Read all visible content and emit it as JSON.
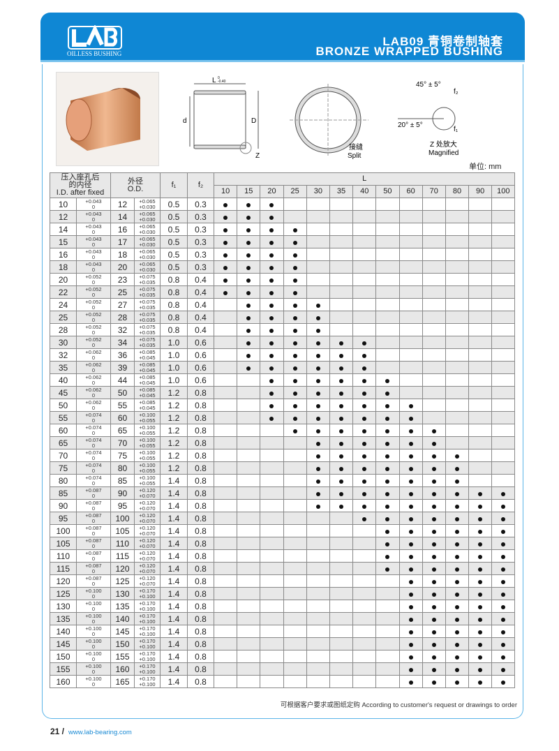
{
  "header": {
    "logo_text": "OILLESS BUSHING",
    "title_cn": "LAB09 青铜卷制轴套",
    "title_en": "BRONZE WRAPPED BUSHING",
    "brand_color": "#0f87d4"
  },
  "drawing": {
    "length_label": "L",
    "length_tol_up": "0",
    "length_tol_lo": "-0.40",
    "d_label": "d",
    "D_label": "D",
    "z_label": "Z",
    "split_cn": "接缝",
    "split_en": "Split",
    "angle1": "45° ± 5°",
    "angle2": "20° ± 5°",
    "f1": "f₁",
    "f2": "f₂",
    "magnified_cn": "Z 处放大",
    "magnified_en": "Magnified"
  },
  "unit": "单位: mm",
  "table": {
    "headers": {
      "id_cn": "压入座孔后的内径",
      "id_en": "I.D. after fixed",
      "od_cn": "外径",
      "od_en": "O.D.",
      "f1": "f₁",
      "f2": "f₂",
      "L": "L"
    },
    "L_values": [
      "10",
      "15",
      "20",
      "25",
      "30",
      "35",
      "40",
      "50",
      "60",
      "70",
      "80",
      "90",
      "100"
    ],
    "rows": [
      [
        "10",
        "+0.043",
        "0",
        "12",
        "+0.065",
        "+0.030",
        "0.5",
        "0.3",
        [
          10,
          15,
          20
        ]
      ],
      [
        "12",
        "+0.043",
        "0",
        "14",
        "+0.065",
        "+0.030",
        "0.5",
        "0.3",
        [
          10,
          15,
          20
        ]
      ],
      [
        "14",
        "+0.043",
        "0",
        "16",
        "+0.065",
        "+0.030",
        "0.5",
        "0.3",
        [
          10,
          15,
          20,
          25
        ]
      ],
      [
        "15",
        "+0.043",
        "0",
        "17",
        "+0.065",
        "+0.030",
        "0.5",
        "0.3",
        [
          10,
          15,
          20,
          25
        ]
      ],
      [
        "16",
        "+0.043",
        "0",
        "18",
        "+0.065",
        "+0.030",
        "0.5",
        "0.3",
        [
          10,
          15,
          20,
          25
        ]
      ],
      [
        "18",
        "+0.043",
        "0",
        "20",
        "+0.065",
        "+0.030",
        "0.5",
        "0.3",
        [
          10,
          15,
          20,
          25
        ]
      ],
      [
        "20",
        "+0.052",
        "0",
        "23",
        "+0.075",
        "+0.035",
        "0.8",
        "0.4",
        [
          10,
          15,
          20,
          25
        ]
      ],
      [
        "22",
        "+0.052",
        "0",
        "25",
        "+0.075",
        "+0.035",
        "0.8",
        "0.4",
        [
          10,
          15,
          20,
          25
        ]
      ],
      [
        "24",
        "+0.052",
        "0",
        "27",
        "+0.075",
        "+0.035",
        "0.8",
        "0.4",
        [
          15,
          20,
          25,
          30
        ]
      ],
      [
        "25",
        "+0.052",
        "0",
        "28",
        "+0.075",
        "+0.035",
        "0.8",
        "0.4",
        [
          15,
          20,
          25,
          30
        ]
      ],
      [
        "28",
        "+0.052",
        "0",
        "32",
        "+0.075",
        "+0.035",
        "0.8",
        "0.4",
        [
          15,
          20,
          25,
          30
        ]
      ],
      [
        "30",
        "+0.052",
        "0",
        "34",
        "+0.075",
        "+0.035",
        "1.0",
        "0.6",
        [
          15,
          20,
          25,
          30,
          35,
          40
        ]
      ],
      [
        "32",
        "+0.062",
        "0",
        "36",
        "+0.085",
        "+0.045",
        "1.0",
        "0.6",
        [
          15,
          20,
          25,
          30,
          35,
          40
        ]
      ],
      [
        "35",
        "+0.062",
        "0",
        "39",
        "+0.085",
        "+0.045",
        "1.0",
        "0.6",
        [
          15,
          20,
          25,
          30,
          35,
          40
        ]
      ],
      [
        "40",
        "+0.062",
        "0",
        "44",
        "+0.085",
        "+0.045",
        "1.0",
        "0.6",
        [
          20,
          25,
          30,
          35,
          40,
          50
        ]
      ],
      [
        "45",
        "+0.062",
        "0",
        "50",
        "+0.085",
        "+0.045",
        "1.2",
        "0.8",
        [
          20,
          25,
          30,
          35,
          40,
          50
        ]
      ],
      [
        "50",
        "+0.062",
        "0",
        "55",
        "+0.085",
        "+0.045",
        "1.2",
        "0.8",
        [
          20,
          25,
          30,
          35,
          40,
          50,
          60
        ]
      ],
      [
        "55",
        "+0.074",
        "0",
        "60",
        "+0.100",
        "+0.055",
        "1.2",
        "0.8",
        [
          20,
          25,
          30,
          35,
          40,
          50,
          60
        ]
      ],
      [
        "60",
        "+0.074",
        "0",
        "65",
        "+0.100",
        "+0.055",
        "1.2",
        "0.8",
        [
          25,
          30,
          35,
          40,
          50,
          60,
          70
        ]
      ],
      [
        "65",
        "+0.074",
        "0",
        "70",
        "+0.100",
        "+0.055",
        "1.2",
        "0.8",
        [
          30,
          35,
          40,
          50,
          60,
          70
        ]
      ],
      [
        "70",
        "+0.074",
        "0",
        "75",
        "+0.100",
        "+0.055",
        "1.2",
        "0.8",
        [
          30,
          35,
          40,
          50,
          60,
          70,
          80
        ]
      ],
      [
        "75",
        "+0.074",
        "0",
        "80",
        "+0.100",
        "+0.055",
        "1.2",
        "0.8",
        [
          30,
          35,
          40,
          50,
          60,
          70,
          80
        ]
      ],
      [
        "80",
        "+0.074",
        "0",
        "85",
        "+0.100",
        "+0.055",
        "1.4",
        "0.8",
        [
          30,
          35,
          40,
          50,
          60,
          70,
          80
        ]
      ],
      [
        "85",
        "+0.087",
        "0",
        "90",
        "+0.120",
        "+0.070",
        "1.4",
        "0.8",
        [
          30,
          35,
          40,
          50,
          60,
          70,
          80,
          90,
          100
        ]
      ],
      [
        "90",
        "+0.087",
        "0",
        "95",
        "+0.120",
        "+0.070",
        "1.4",
        "0.8",
        [
          30,
          35,
          40,
          50,
          60,
          70,
          80,
          90,
          100
        ]
      ],
      [
        "95",
        "+0.087",
        "0",
        "100",
        "+0.120",
        "+0.070",
        "1.4",
        "0.8",
        [
          40,
          50,
          60,
          70,
          80,
          90,
          100
        ]
      ],
      [
        "100",
        "+0.087",
        "0",
        "105",
        "+0.120",
        "+0.070",
        "1.4",
        "0.8",
        [
          50,
          60,
          70,
          80,
          90,
          100
        ]
      ],
      [
        "105",
        "+0.087",
        "0",
        "110",
        "+0.120",
        "+0.070",
        "1.4",
        "0.8",
        [
          50,
          60,
          70,
          80,
          90,
          100
        ]
      ],
      [
        "110",
        "+0.087",
        "0",
        "115",
        "+0.120",
        "+0.070",
        "1.4",
        "0.8",
        [
          50,
          60,
          70,
          80,
          90,
          100
        ]
      ],
      [
        "115",
        "+0.087",
        "0",
        "120",
        "+0.120",
        "+0.070",
        "1.4",
        "0.8",
        [
          50,
          60,
          70,
          80,
          90,
          100
        ]
      ],
      [
        "120",
        "+0.087",
        "0",
        "125",
        "+0.120",
        "+0.070",
        "1.4",
        "0.8",
        [
          60,
          70,
          80,
          90,
          100
        ]
      ],
      [
        "125",
        "+0.100",
        "0",
        "130",
        "+0.170",
        "+0.100",
        "1.4",
        "0.8",
        [
          60,
          70,
          80,
          90,
          100
        ]
      ],
      [
        "130",
        "+0.100",
        "0",
        "135",
        "+0.170",
        "+0.100",
        "1.4",
        "0.8",
        [
          60,
          70,
          80,
          90,
          100
        ]
      ],
      [
        "135",
        "+0.100",
        "0",
        "140",
        "+0.170",
        "+0.100",
        "1.4",
        "0.8",
        [
          60,
          70,
          80,
          90,
          100
        ]
      ],
      [
        "140",
        "+0.100",
        "0",
        "145",
        "+0.170",
        "+0.100",
        "1.4",
        "0.8",
        [
          60,
          70,
          80,
          90,
          100
        ]
      ],
      [
        "145",
        "+0.100",
        "0",
        "150",
        "+0.170",
        "+0.100",
        "1.4",
        "0.8",
        [
          60,
          70,
          80,
          90,
          100
        ]
      ],
      [
        "150",
        "+0.100",
        "0",
        "155",
        "+0.170",
        "+0.100",
        "1.4",
        "0.8",
        [
          60,
          70,
          80,
          90,
          100
        ]
      ],
      [
        "155",
        "+0.100",
        "0",
        "160",
        "+0.170",
        "+0.100",
        "1.4",
        "0.8",
        [
          60,
          70,
          80,
          90,
          100
        ]
      ],
      [
        "160",
        "+0.100",
        "0",
        "165",
        "+0.170",
        "+0.100",
        "1.4",
        "0.8",
        [
          60,
          70,
          80,
          90,
          100
        ]
      ]
    ]
  },
  "footer": {
    "note": "可根据客户要求或图纸定购  According to customer's request or drawings to order",
    "page": "21 /",
    "url": "www.lab-bearing.com"
  }
}
